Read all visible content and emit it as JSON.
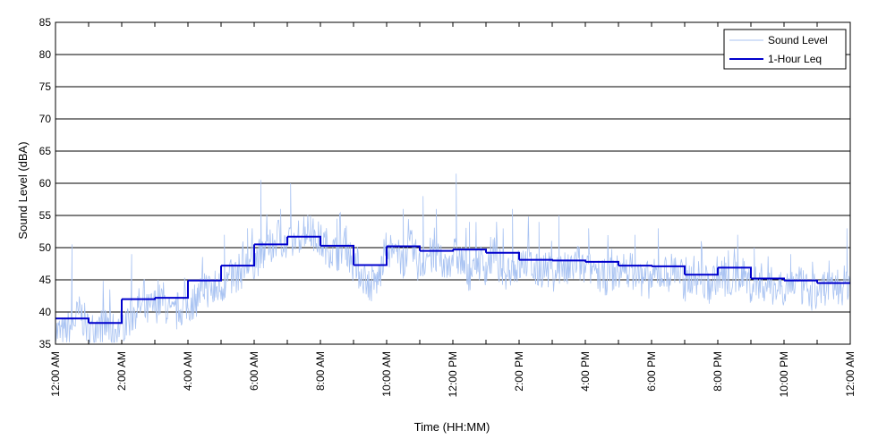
{
  "chart_data": {
    "type": "line",
    "title": "",
    "xlabel": "Time (HH:MM)",
    "ylabel": "Sound Level (dBA)",
    "ylim": [
      35,
      85
    ],
    "xlim": [
      0,
      24
    ],
    "y_ticks": [
      35,
      40,
      45,
      50,
      55,
      60,
      65,
      70,
      75,
      80,
      85
    ],
    "x_tick_hours": [
      0,
      2,
      4,
      6,
      8,
      10,
      12,
      14,
      16,
      18,
      20,
      22,
      24
    ],
    "x_tick_labels": [
      "12:00 AM",
      "2:00 AM",
      "4:00 AM",
      "6:00 AM",
      "8:00 AM",
      "10:00 AM",
      "12:00 PM",
      "2:00 PM",
      "4:00 PM",
      "6:00 PM",
      "8:00 PM",
      "10:00 PM",
      "12:00 AM"
    ],
    "grid": {
      "horizontal": true,
      "vertical": false
    },
    "legend": {
      "placement": "top-right",
      "entries": [
        "Sound Level",
        "1-Hour Leq"
      ]
    },
    "colors": {
      "sound_level": "#a9c3f2",
      "leq": "#0000cc"
    },
    "series": [
      {
        "name": "Sound Level",
        "hour": [
          0,
          0.25,
          0.5,
          0.75,
          1,
          1.25,
          1.5,
          1.75,
          2,
          2.25,
          2.5,
          2.75,
          3,
          3.25,
          3.5,
          3.75,
          4,
          4.25,
          4.5,
          4.75,
          5,
          5.25,
          5.5,
          5.75,
          6,
          6.25,
          6.5,
          6.75,
          7,
          7.25,
          7.5,
          7.75,
          8,
          8.25,
          8.5,
          8.75,
          9,
          9.25,
          9.5,
          9.75,
          10,
          10.25,
          10.5,
          10.75,
          11,
          11.25,
          11.5,
          11.75,
          12,
          12.25,
          12.5,
          12.75,
          13,
          13.25,
          13.5,
          13.75,
          14,
          14.25,
          14.5,
          14.75,
          15,
          15.25,
          15.5,
          15.75,
          16,
          16.25,
          16.5,
          16.75,
          17,
          17.25,
          17.5,
          17.75,
          18,
          18.25,
          18.5,
          18.75,
          19,
          19.25,
          19.5,
          19.75,
          20,
          20.25,
          20.5,
          20.75,
          21,
          21.25,
          21.5,
          21.75,
          22,
          22.25,
          22.5,
          22.75,
          23,
          23.25,
          23.5,
          23.75,
          24
        ],
        "values": [
          37,
          36.5,
          38,
          40,
          37,
          37.5,
          38,
          37,
          38,
          39,
          41,
          40,
          41,
          42,
          39,
          40.5,
          41,
          42,
          44,
          43,
          44,
          45,
          46,
          47,
          48,
          49,
          50,
          52,
          50,
          51,
          53,
          52,
          51,
          50,
          49,
          51,
          47,
          46,
          44,
          45,
          50,
          49,
          48,
          50,
          47,
          49,
          48,
          47,
          49,
          48,
          46,
          48,
          47,
          49,
          46,
          47,
          47,
          48,
          46,
          47,
          46,
          47,
          46,
          48,
          46,
          47,
          45,
          46,
          46,
          47,
          46,
          45,
          45,
          46,
          46,
          47,
          44,
          46,
          45,
          44,
          46,
          45,
          45,
          46,
          44,
          45,
          44,
          44,
          44,
          45,
          44,
          43,
          43,
          44,
          44,
          44,
          45
        ],
        "spikes": [
          {
            "hour": 0.5,
            "value": 50.5
          },
          {
            "hour": 2.3,
            "value": 49
          },
          {
            "hour": 3.1,
            "value": 45
          },
          {
            "hour": 4.5,
            "value": 46
          },
          {
            "hour": 5.1,
            "value": 52
          },
          {
            "hour": 5.8,
            "value": 53
          },
          {
            "hour": 6.2,
            "value": 60.5
          },
          {
            "hour": 6.8,
            "value": 56
          },
          {
            "hour": 7.1,
            "value": 60
          },
          {
            "hour": 7.7,
            "value": 55
          },
          {
            "hour": 8.5,
            "value": 54.5
          },
          {
            "hour": 10.5,
            "value": 56
          },
          {
            "hour": 11.1,
            "value": 58
          },
          {
            "hour": 11.5,
            "value": 56
          },
          {
            "hour": 12.1,
            "value": 61.5
          },
          {
            "hour": 12.5,
            "value": 54
          },
          {
            "hour": 13.8,
            "value": 56
          },
          {
            "hour": 14.6,
            "value": 54
          },
          {
            "hour": 15.2,
            "value": 55
          },
          {
            "hour": 16.1,
            "value": 53
          },
          {
            "hour": 17.5,
            "value": 52
          },
          {
            "hour": 18.2,
            "value": 53
          },
          {
            "hour": 19.5,
            "value": 51
          },
          {
            "hour": 20.6,
            "value": 52
          },
          {
            "hour": 21.1,
            "value": 50
          },
          {
            "hour": 22.2,
            "value": 49
          },
          {
            "hour": 23.9,
            "value": 53
          }
        ]
      },
      {
        "name": "1-Hour Leq",
        "hour_start": [
          0,
          1,
          2,
          3,
          4,
          5,
          6,
          7,
          8,
          9,
          10,
          11,
          12,
          13,
          14,
          15,
          16,
          17,
          18,
          19,
          20,
          21,
          22,
          23
        ],
        "values": [
          39,
          38.3,
          42,
          42.2,
          44.9,
          47.2,
          50.5,
          51.7,
          50.3,
          47.3,
          50.2,
          49.5,
          49.7,
          49.2,
          48.1,
          48.0,
          47.8,
          47.2,
          47.1,
          45.8,
          46.9,
          45.2,
          44.9,
          44.5
        ]
      }
    ]
  }
}
